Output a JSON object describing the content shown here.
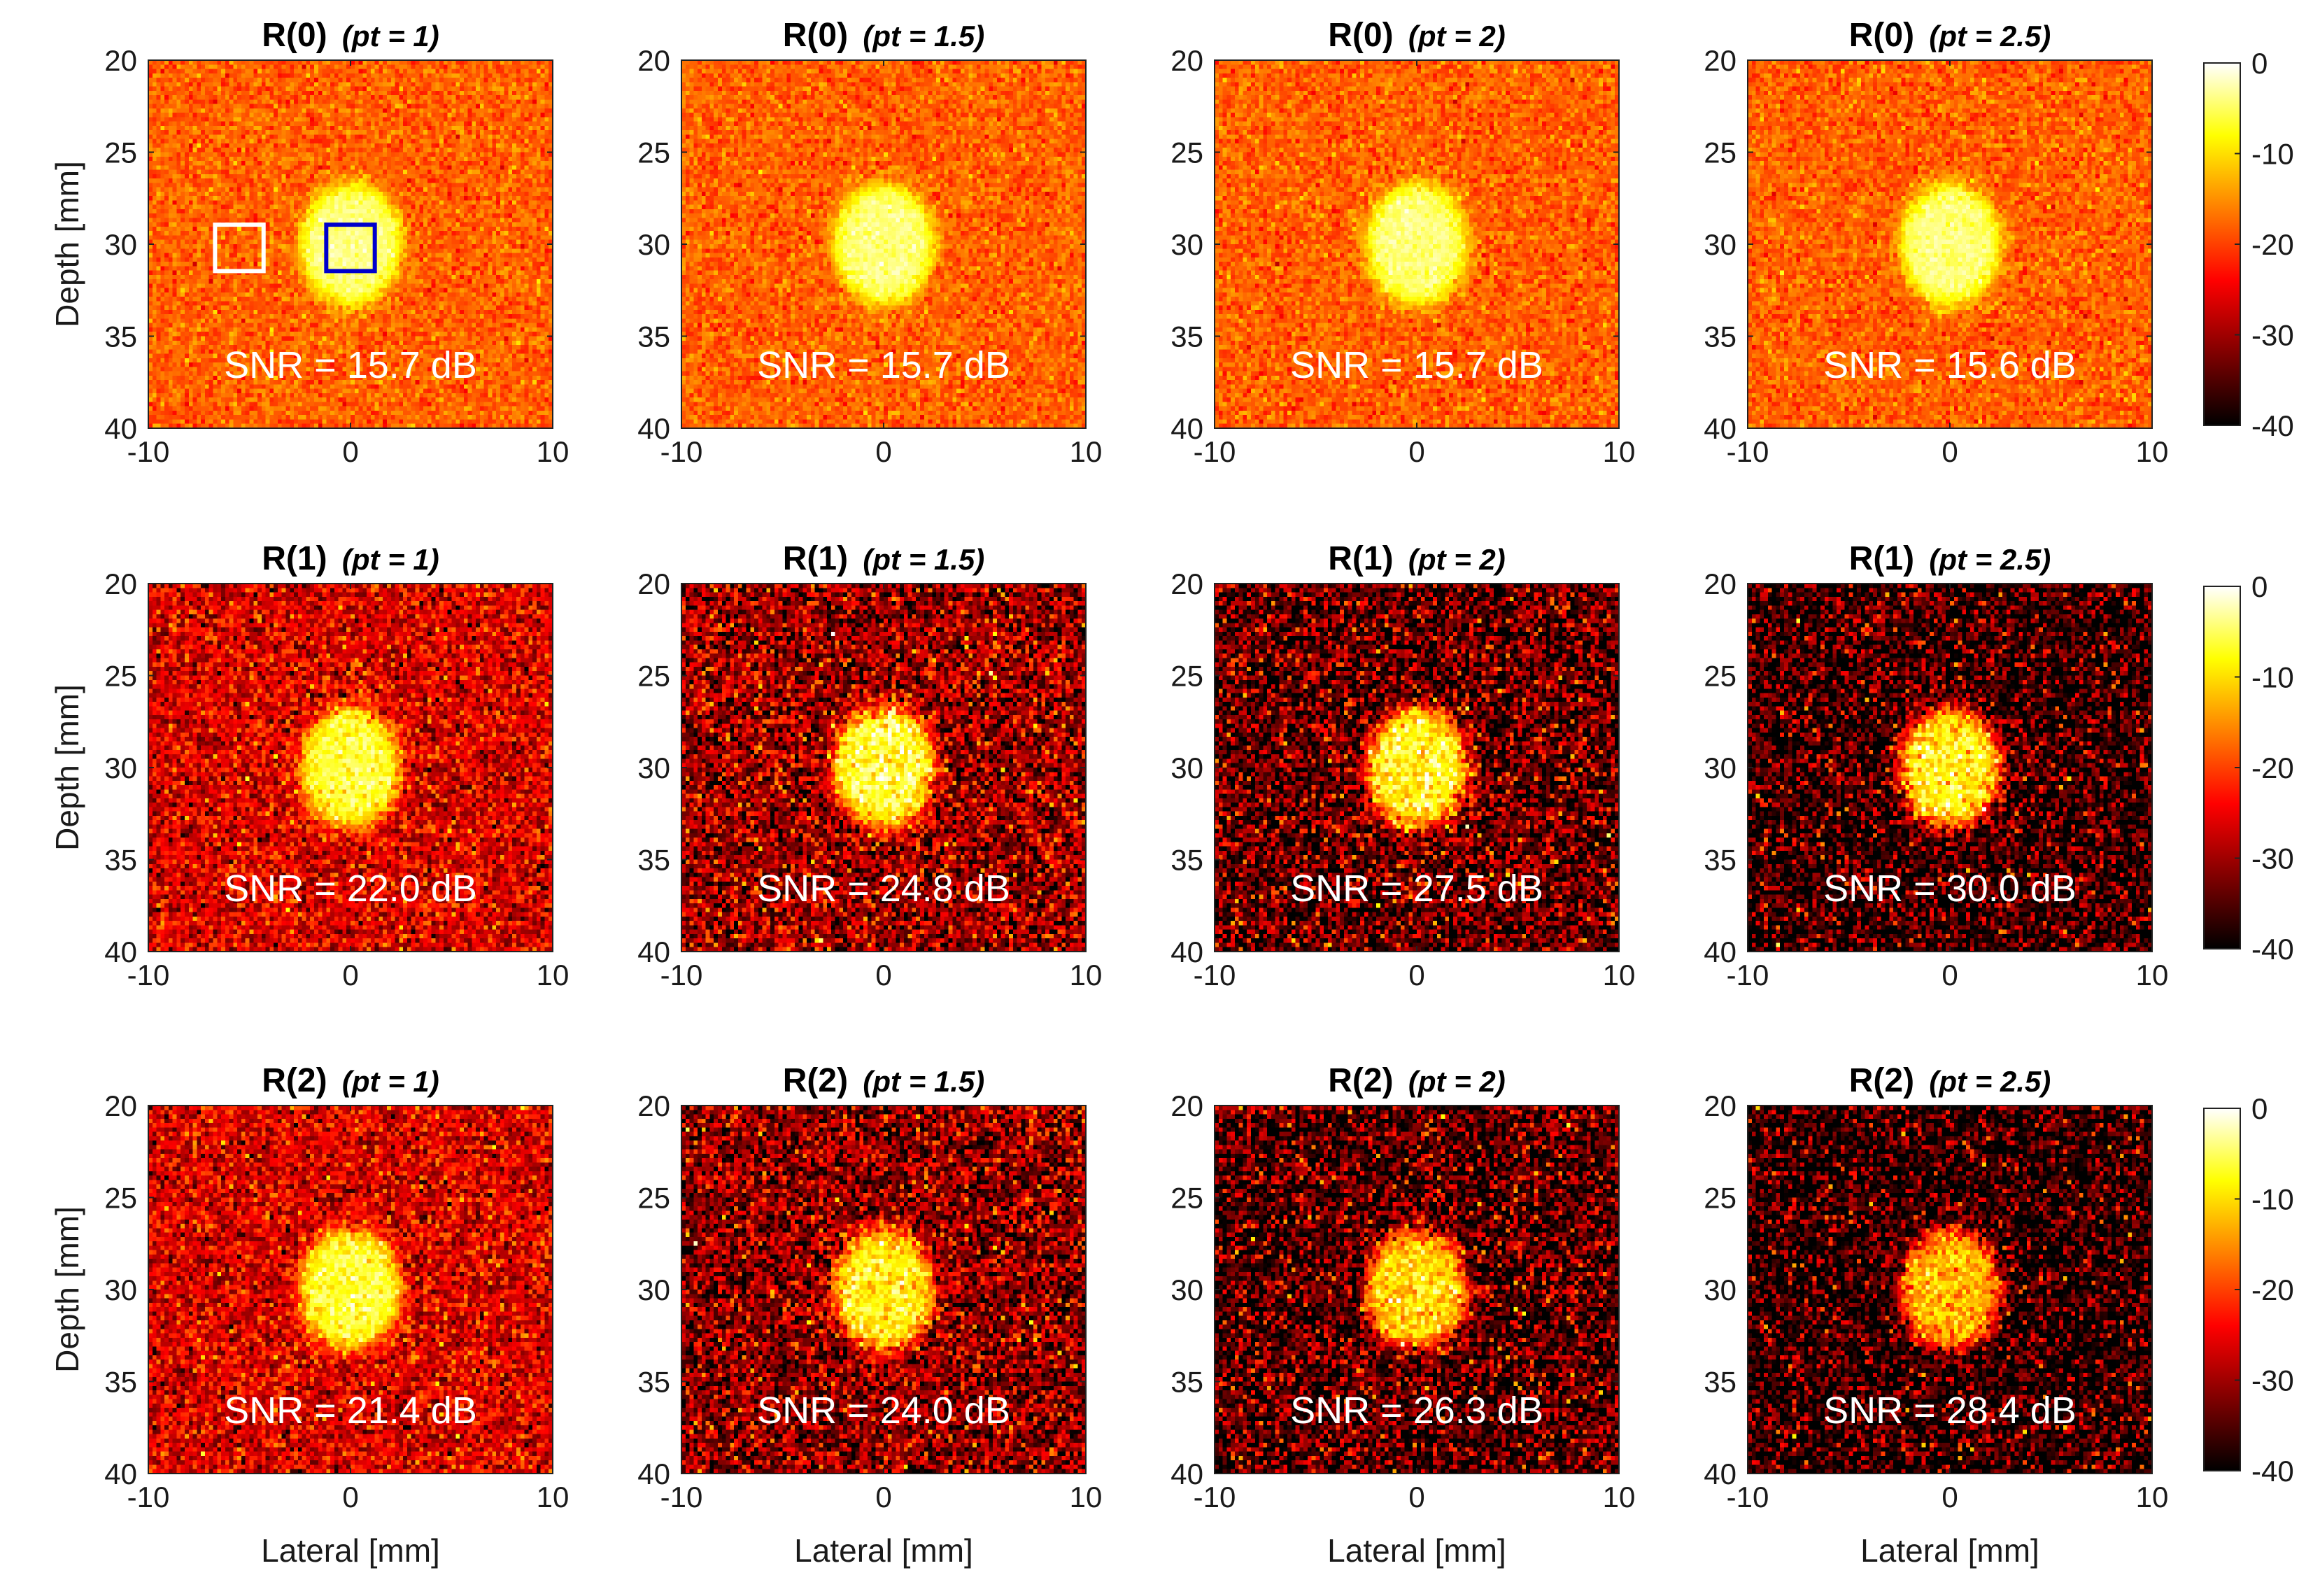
{
  "colors": {
    "colormap": [
      "#000000",
      "#800000",
      "#ff0000",
      "#ff8000",
      "#ffff00",
      "#ffffff"
    ],
    "roi_background": "#ffffff",
    "roi_target": "#0000cc",
    "snr_text": "#ffffff"
  },
  "chart_data": {
    "type": "heatmap",
    "layout": "3 rows x 4 columns",
    "xlabel": "Lateral [mm]",
    "ylabel": "Depth [mm]",
    "xlim": [
      -10,
      10
    ],
    "ylim": [
      40,
      20
    ],
    "x_ticks": [
      -10,
      0,
      10
    ],
    "y_ticks": [
      20,
      25,
      30,
      35,
      40
    ],
    "colorbar": {
      "range": [
        -40,
        0
      ],
      "ticks": [
        0,
        -10,
        -20,
        -30,
        -40
      ]
    },
    "inclusion": {
      "center_x": 0,
      "center_y": 30,
      "half_width_x": 2.5,
      "half_height_y": 3.3
    },
    "rows": [
      {
        "name": "R(0)",
        "panels": [
          {
            "title": "R(0)",
            "subtitle": "(pt = 1)",
            "snr_label": "SNR = 15.7 dB",
            "snr_db": 15.7,
            "background_db": -18,
            "inclusion_db": -4,
            "noise_db": 2.5
          },
          {
            "title": "R(0)",
            "subtitle": "(pt = 1.5)",
            "snr_label": "SNR = 15.7 dB",
            "snr_db": 15.7,
            "background_db": -18,
            "inclusion_db": -4,
            "noise_db": 2.5
          },
          {
            "title": "R(0)",
            "subtitle": "(pt = 2)",
            "snr_label": "SNR = 15.7 dB",
            "snr_db": 15.7,
            "background_db": -18,
            "inclusion_db": -4,
            "noise_db": 2.5
          },
          {
            "title": "R(0)",
            "subtitle": "(pt = 2.5)",
            "snr_label": "SNR = 15.6 dB",
            "snr_db": 15.6,
            "background_db": -18,
            "inclusion_db": -4,
            "noise_db": 2.5
          }
        ]
      },
      {
        "name": "R(1)",
        "panels": [
          {
            "title": "R(1)",
            "subtitle": "(pt = 1)",
            "snr_label": "SNR = 22.0 dB",
            "snr_db": 22.0,
            "background_db": -26,
            "inclusion_db": -6,
            "noise_db": 5
          },
          {
            "title": "R(1)",
            "subtitle": "(pt = 1.5)",
            "snr_label": "SNR = 24.8 dB",
            "snr_db": 24.8,
            "background_db": -30,
            "inclusion_db": -6,
            "noise_db": 7
          },
          {
            "title": "R(1)",
            "subtitle": "(pt = 2)",
            "snr_label": "SNR = 27.5 dB",
            "snr_db": 27.5,
            "background_db": -34,
            "inclusion_db": -7,
            "noise_db": 8
          },
          {
            "title": "R(1)",
            "subtitle": "(pt = 2.5)",
            "snr_label": "SNR = 30.0 dB",
            "snr_db": 30.0,
            "background_db": -37,
            "inclusion_db": -8,
            "noise_db": 8
          }
        ]
      },
      {
        "name": "R(2)",
        "panels": [
          {
            "title": "R(2)",
            "subtitle": "(pt = 1)",
            "snr_label": "SNR = 21.4 dB",
            "snr_db": 21.4,
            "background_db": -26,
            "inclusion_db": -6,
            "noise_db": 5
          },
          {
            "title": "R(2)",
            "subtitle": "(pt = 1.5)",
            "snr_label": "SNR = 24.0 dB",
            "snr_db": 24.0,
            "background_db": -31,
            "inclusion_db": -8,
            "noise_db": 7
          },
          {
            "title": "R(2)",
            "subtitle": "(pt = 2)",
            "snr_label": "SNR = 26.3 dB",
            "snr_db": 26.3,
            "background_db": -35,
            "inclusion_db": -10,
            "noise_db": 8
          },
          {
            "title": "R(2)",
            "subtitle": "(pt = 2.5)",
            "snr_label": "SNR = 28.4 dB",
            "snr_db": 28.4,
            "background_db": -38,
            "inclusion_db": -12,
            "noise_db": 8
          }
        ]
      }
    ],
    "annotations": [
      {
        "panel": "R(0) (pt = 1)",
        "type": "roi-background",
        "center_x": -5.5,
        "center_y": 30.2,
        "half_size": 1.2
      },
      {
        "panel": "R(0) (pt = 1)",
        "type": "roi-target",
        "center_x": 0,
        "center_y": 30.2,
        "half_size": 1.2
      }
    ]
  }
}
